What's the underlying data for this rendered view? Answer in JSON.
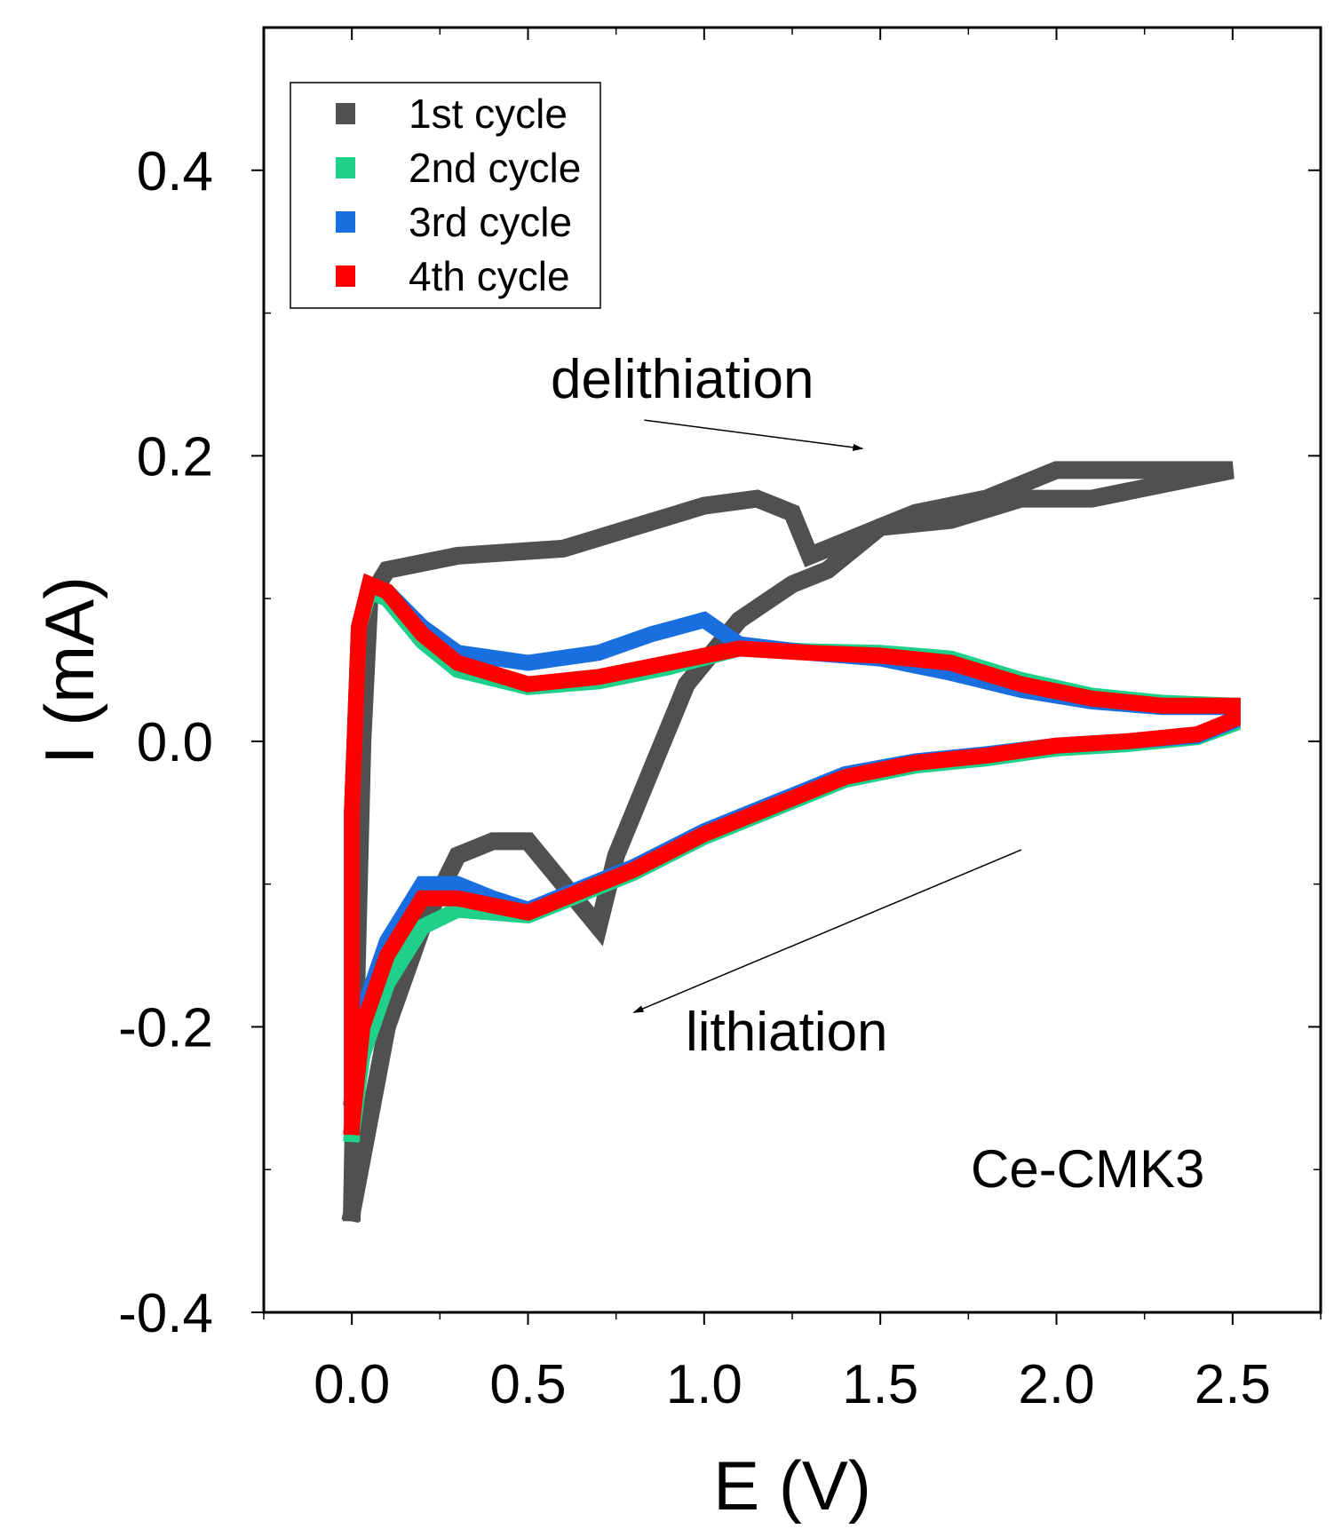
{
  "chart_data": {
    "type": "line",
    "title": "",
    "xlabel": "E (V)",
    "ylabel": "I (mA)",
    "xlim": [
      -0.25,
      2.75
    ],
    "ylim": [
      -0.4,
      0.5
    ],
    "xticks": [
      0.0,
      0.5,
      1.0,
      1.5,
      2.0,
      2.5
    ],
    "xtick_labels": [
      "0.0",
      "0.5",
      "1.0",
      "1.5",
      "2.0",
      "2.5"
    ],
    "yticks": [
      -0.4,
      -0.2,
      0.0,
      0.2,
      0.4
    ],
    "ytick_labels": [
      "-0.4",
      "-0.2",
      "0.0",
      "0.2",
      "0.4"
    ],
    "grid": false,
    "legend_position": "top-left",
    "annotations": {
      "delithiation": "delithiation",
      "lithiation": "lithiation",
      "sample": "Ce-CMK3"
    },
    "arrows": [
      {
        "name": "delithiation",
        "from": [
          0.83,
          0.225
        ],
        "to": [
          1.45,
          0.205
        ]
      },
      {
        "name": "lithiation",
        "from": [
          1.9,
          -0.076
        ],
        "to": [
          0.8,
          -0.19
        ]
      }
    ],
    "series": [
      {
        "name": "1st cycle",
        "color": "#505050",
        "points": [
          [
            0.0,
            -0.33
          ],
          [
            0.01,
            -0.2
          ],
          [
            0.03,
            0.0
          ],
          [
            0.05,
            0.1
          ],
          [
            0.1,
            0.12
          ],
          [
            0.3,
            0.13
          ],
          [
            0.6,
            0.135
          ],
          [
            0.8,
            0.15
          ],
          [
            1.0,
            0.165
          ],
          [
            1.15,
            0.17
          ],
          [
            1.25,
            0.16
          ],
          [
            1.3,
            0.13
          ],
          [
            1.4,
            0.14
          ],
          [
            1.6,
            0.16
          ],
          [
            1.8,
            0.17
          ],
          [
            2.0,
            0.19
          ],
          [
            2.2,
            0.19
          ],
          [
            2.4,
            0.19
          ],
          [
            2.5,
            0.19
          ],
          [
            2.3,
            0.18
          ],
          [
            2.1,
            0.17
          ],
          [
            1.9,
            0.17
          ],
          [
            1.7,
            0.155
          ],
          [
            1.5,
            0.15
          ],
          [
            1.35,
            0.12
          ],
          [
            1.25,
            0.11
          ],
          [
            1.1,
            0.085
          ],
          [
            0.95,
            0.04
          ],
          [
            0.85,
            -0.02
          ],
          [
            0.75,
            -0.08
          ],
          [
            0.7,
            -0.13
          ],
          [
            0.6,
            -0.1
          ],
          [
            0.5,
            -0.07
          ],
          [
            0.4,
            -0.07
          ],
          [
            0.3,
            -0.08
          ],
          [
            0.2,
            -0.13
          ],
          [
            0.1,
            -0.2
          ],
          [
            0.0,
            -0.33
          ]
        ]
      },
      {
        "name": "2nd cycle",
        "color": "#1ed08a",
        "points": [
          [
            0.0,
            -0.275
          ],
          [
            0.0,
            -0.05
          ],
          [
            0.02,
            0.08
          ],
          [
            0.05,
            0.105
          ],
          [
            0.1,
            0.1
          ],
          [
            0.2,
            0.07
          ],
          [
            0.3,
            0.05
          ],
          [
            0.5,
            0.038
          ],
          [
            0.7,
            0.042
          ],
          [
            0.9,
            0.052
          ],
          [
            1.1,
            0.065
          ],
          [
            1.3,
            0.063
          ],
          [
            1.5,
            0.062
          ],
          [
            1.7,
            0.058
          ],
          [
            1.9,
            0.043
          ],
          [
            2.1,
            0.032
          ],
          [
            2.3,
            0.027
          ],
          [
            2.5,
            0.025
          ],
          [
            2.5,
            0.012
          ],
          [
            2.4,
            0.003
          ],
          [
            2.2,
            -0.002
          ],
          [
            2.0,
            -0.005
          ],
          [
            1.8,
            -0.012
          ],
          [
            1.6,
            -0.017
          ],
          [
            1.4,
            -0.027
          ],
          [
            1.2,
            -0.047
          ],
          [
            1.0,
            -0.067
          ],
          [
            0.8,
            -0.092
          ],
          [
            0.6,
            -0.112
          ],
          [
            0.5,
            -0.122
          ],
          [
            0.4,
            -0.12
          ],
          [
            0.3,
            -0.118
          ],
          [
            0.2,
            -0.13
          ],
          [
            0.1,
            -0.17
          ],
          [
            0.03,
            -0.22
          ],
          [
            0.0,
            -0.275
          ]
        ]
      },
      {
        "name": "3rd cycle",
        "color": "#1a6fe0",
        "points": [
          [
            0.0,
            -0.25
          ],
          [
            0.0,
            -0.05
          ],
          [
            0.02,
            0.08
          ],
          [
            0.05,
            0.11
          ],
          [
            0.1,
            0.105
          ],
          [
            0.2,
            0.08
          ],
          [
            0.3,
            0.062
          ],
          [
            0.5,
            0.055
          ],
          [
            0.7,
            0.062
          ],
          [
            0.85,
            0.075
          ],
          [
            1.0,
            0.085
          ],
          [
            1.1,
            0.068
          ],
          [
            1.3,
            0.062
          ],
          [
            1.5,
            0.058
          ],
          [
            1.7,
            0.048
          ],
          [
            1.9,
            0.036
          ],
          [
            2.1,
            0.028
          ],
          [
            2.3,
            0.024
          ],
          [
            2.5,
            0.024
          ],
          [
            2.5,
            0.014
          ],
          [
            2.4,
            0.004
          ],
          [
            2.2,
            0.0
          ],
          [
            2.0,
            -0.003
          ],
          [
            1.8,
            -0.009
          ],
          [
            1.6,
            -0.014
          ],
          [
            1.4,
            -0.023
          ],
          [
            1.2,
            -0.043
          ],
          [
            1.0,
            -0.063
          ],
          [
            0.8,
            -0.088
          ],
          [
            0.6,
            -0.108
          ],
          [
            0.5,
            -0.118
          ],
          [
            0.4,
            -0.11
          ],
          [
            0.3,
            -0.1
          ],
          [
            0.2,
            -0.1
          ],
          [
            0.1,
            -0.14
          ],
          [
            0.03,
            -0.19
          ],
          [
            0.0,
            -0.25
          ]
        ]
      },
      {
        "name": "4th cycle",
        "color": "#ff0000",
        "points": [
          [
            0.0,
            -0.27
          ],
          [
            0.0,
            -0.05
          ],
          [
            0.02,
            0.08
          ],
          [
            0.05,
            0.11
          ],
          [
            0.1,
            0.105
          ],
          [
            0.2,
            0.075
          ],
          [
            0.3,
            0.055
          ],
          [
            0.5,
            0.04
          ],
          [
            0.7,
            0.045
          ],
          [
            0.9,
            0.055
          ],
          [
            1.1,
            0.065
          ],
          [
            1.3,
            0.062
          ],
          [
            1.5,
            0.06
          ],
          [
            1.7,
            0.055
          ],
          [
            1.9,
            0.04
          ],
          [
            2.1,
            0.03
          ],
          [
            2.3,
            0.025
          ],
          [
            2.5,
            0.025
          ],
          [
            2.5,
            0.015
          ],
          [
            2.4,
            0.005
          ],
          [
            2.2,
            0.0
          ],
          [
            2.0,
            -0.003
          ],
          [
            1.8,
            -0.01
          ],
          [
            1.6,
            -0.015
          ],
          [
            1.4,
            -0.025
          ],
          [
            1.2,
            -0.045
          ],
          [
            1.0,
            -0.065
          ],
          [
            0.8,
            -0.09
          ],
          [
            0.6,
            -0.11
          ],
          [
            0.5,
            -0.12
          ],
          [
            0.4,
            -0.115
          ],
          [
            0.3,
            -0.11
          ],
          [
            0.2,
            -0.11
          ],
          [
            0.1,
            -0.15
          ],
          [
            0.03,
            -0.2
          ],
          [
            0.0,
            -0.27
          ]
        ]
      }
    ]
  }
}
